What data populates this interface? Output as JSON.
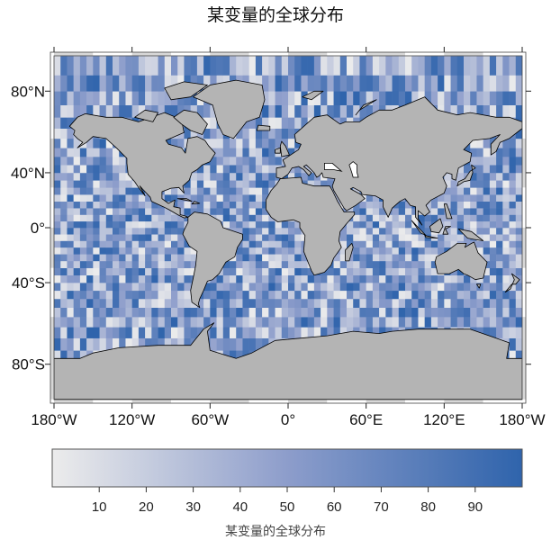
{
  "title": "某变量的全球分布",
  "map": {
    "projection": "Miller cylindrical",
    "lon_range": [
      -180,
      180
    ],
    "lat_range": [
      -90,
      90
    ],
    "land_color": "#b4b4b4",
    "coastline_color": "#000000",
    "lon_ticks": [
      {
        "value": -180,
        "label": "180°W"
      },
      {
        "value": -120,
        "label": "120°W"
      },
      {
        "value": -60,
        "label": "60°W"
      },
      {
        "value": 0,
        "label": "0°"
      },
      {
        "value": 60,
        "label": "60°E"
      },
      {
        "value": 120,
        "label": "120°E"
      },
      {
        "value": 180,
        "label": "180°W"
      }
    ],
    "lat_ticks": [
      {
        "value": 80,
        "label": "80°N"
      },
      {
        "value": 40,
        "label": "40°N"
      },
      {
        "value": 0,
        "label": "0°"
      },
      {
        "value": -40,
        "label": "40°S"
      },
      {
        "value": -80,
        "label": "80°S"
      }
    ]
  },
  "colorbar": {
    "range": [
      0,
      100
    ],
    "colors": [
      "#ececec",
      "#b3bdd8",
      "#8d9dcb",
      "#2f64ac"
    ],
    "ticks": [
      {
        "value": 10,
        "label": "10"
      },
      {
        "value": 20,
        "label": "20"
      },
      {
        "value": 30,
        "label": "30"
      },
      {
        "value": 40,
        "label": "40"
      },
      {
        "value": 50,
        "label": "50"
      },
      {
        "value": 60,
        "label": "60"
      },
      {
        "value": 70,
        "label": "70"
      },
      {
        "value": 80,
        "label": "80"
      },
      {
        "value": 90,
        "label": "90"
      }
    ],
    "label": "某变量的全球分布"
  }
}
